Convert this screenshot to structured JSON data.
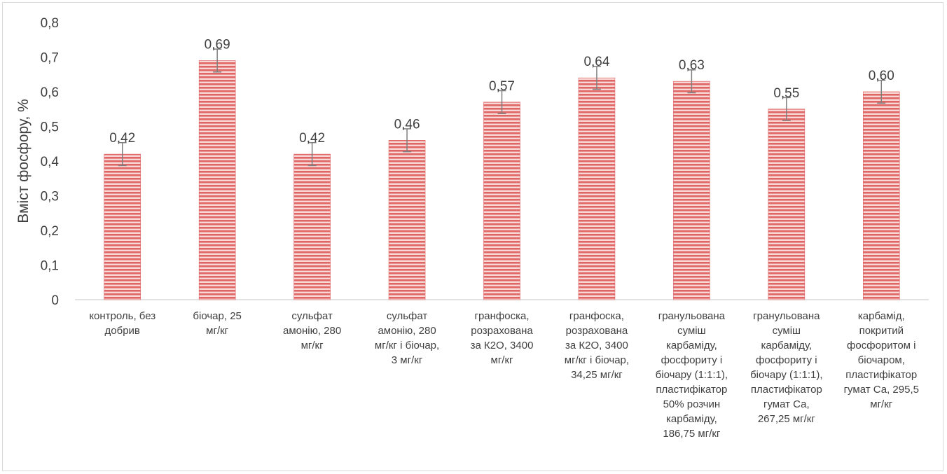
{
  "chart_data": {
    "type": "bar",
    "title": "",
    "xlabel": "",
    "ylabel": "Вміст фосфору, %",
    "ylim": [
      0,
      0.8
    ],
    "yticks": [
      "0",
      "0,1",
      "0,2",
      "0,3",
      "0,4",
      "0,5",
      "0,6",
      "0,7",
      "0,8"
    ],
    "grid": false,
    "legend": "none",
    "bar_color": "#e06666",
    "bar_stripe_color": "#f8d7d7",
    "errorbar_color": "#7f7f7f",
    "error": 0.033,
    "categories": [
      [
        "контроль, без",
        "добрив"
      ],
      [
        "біочар, 25",
        "мг/кг"
      ],
      [
        "сульфат",
        "амонію, 280",
        "мг/кг"
      ],
      [
        "сульфат",
        "амонію, 280",
        "мг/кг і біочар,",
        "3 мг/кг"
      ],
      [
        "гранфоска,",
        "розрахована",
        "за К2О, 3400",
        "мг/кг"
      ],
      [
        "гранфоска,",
        "розрахована",
        "за К2О, 3400",
        "мг/кг і біочар,",
        "34,25 мг/кг"
      ],
      [
        "гранульована",
        "суміш",
        "карбаміду,",
        "фосфориту і",
        "біочару (1:1:1),",
        "пластифікатор",
        "50% розчин",
        "карбаміду,",
        "186,75 мг/кг"
      ],
      [
        "гранульована",
        "суміш",
        "карбаміду,",
        "фосфориту і",
        "біочару (1:1:1),",
        "пластифікатор",
        "гумат Са,",
        "267,25 мг/кг"
      ],
      [
        "карбамід,",
        "покритий",
        "фосфоритом і",
        "біочаром,",
        "пластифікатор",
        "гумат Са, 295,5",
        "мг/кг"
      ]
    ],
    "values": [
      0.42,
      0.69,
      0.42,
      0.46,
      0.57,
      0.64,
      0.63,
      0.55,
      0.6
    ],
    "data_labels": [
      "0,42",
      "0,69",
      "0,42",
      "0,46",
      "0,57",
      "0,64",
      "0,63",
      "0,55",
      "0,60"
    ]
  }
}
